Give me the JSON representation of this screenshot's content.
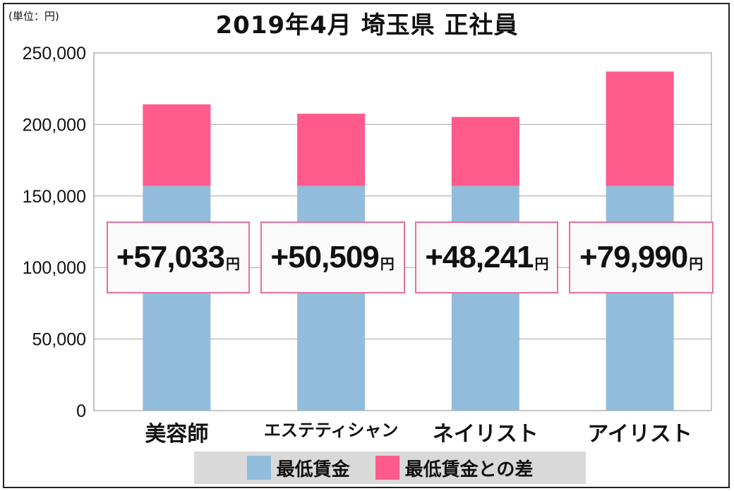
{
  "unit_label": "(単位：円)",
  "chart_data": {
    "type": "bar",
    "stacked": true,
    "title": "2019年4月 埼玉県 正社員",
    "categories": [
      "美容師",
      "エステティシャン",
      "ネイリスト",
      "アイリスト"
    ],
    "series": [
      {
        "name": "最低賃金",
        "color": "#92bcdc",
        "values": [
          157000,
          157000,
          157000,
          157000
        ]
      },
      {
        "name": "最低賃金との差",
        "color": "#ff5a8c",
        "values": [
          57033,
          50509,
          48241,
          79990
        ]
      }
    ],
    "difference_labels": [
      "+57,033",
      "+50,509",
      "+48,241",
      "+79,990"
    ],
    "difference_unit": "円",
    "y_ticks": [
      "0",
      "50,000",
      "100,000",
      "150,000",
      "200,000",
      "250,000"
    ],
    "ylim": [
      0,
      250000
    ],
    "grid": true,
    "legend_position": "bottom"
  }
}
